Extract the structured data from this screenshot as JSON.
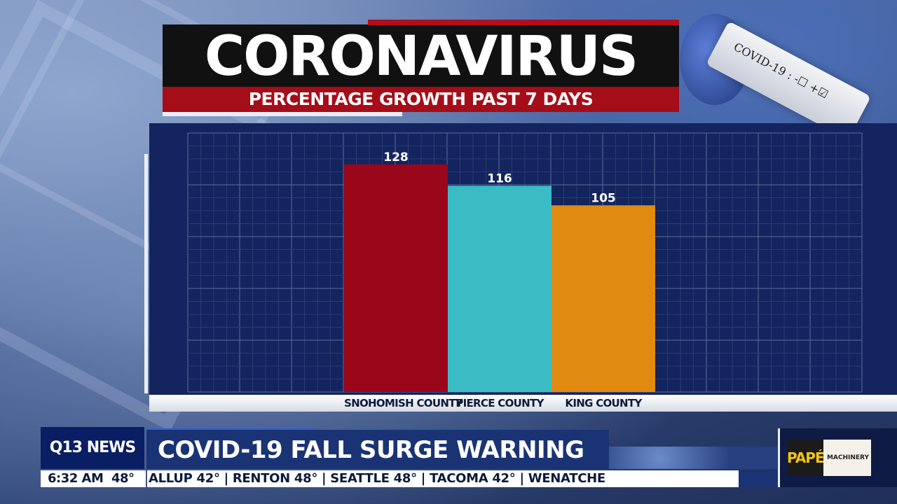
{
  "title": "CORONAVIRUS",
  "subtitle": "PERCENTAGE GROWTH PAST 7 DAYS",
  "tube_label": "COVID-19 : -☐ +☑",
  "chart_data": {
    "type": "bar",
    "categories": [
      "SNOHOMISH COUNTY",
      "PIERCE COUNTY",
      "KING COUNTY"
    ],
    "values": [
      128,
      116,
      105
    ],
    "value_labels": [
      "128",
      "116",
      "105"
    ],
    "colors": [
      "#9a061a",
      "#3bbcc5",
      "#e08a12"
    ],
    "grid": true,
    "ylim": [
      0,
      200
    ]
  },
  "lower_third": {
    "logo": "Q13 NEWS",
    "headline": "COVID-19 FALL SURGE WARNING",
    "time": "6:32 AM",
    "temp": "48°",
    "ticker": "ALLUP  42°  |  RENTON  48°  |  SEATTLE  48°  |  TACOMA  42°  |  WENATCHE"
  },
  "sponsor": {
    "brand": "PAPÉ",
    "text": "MACHINERY"
  }
}
